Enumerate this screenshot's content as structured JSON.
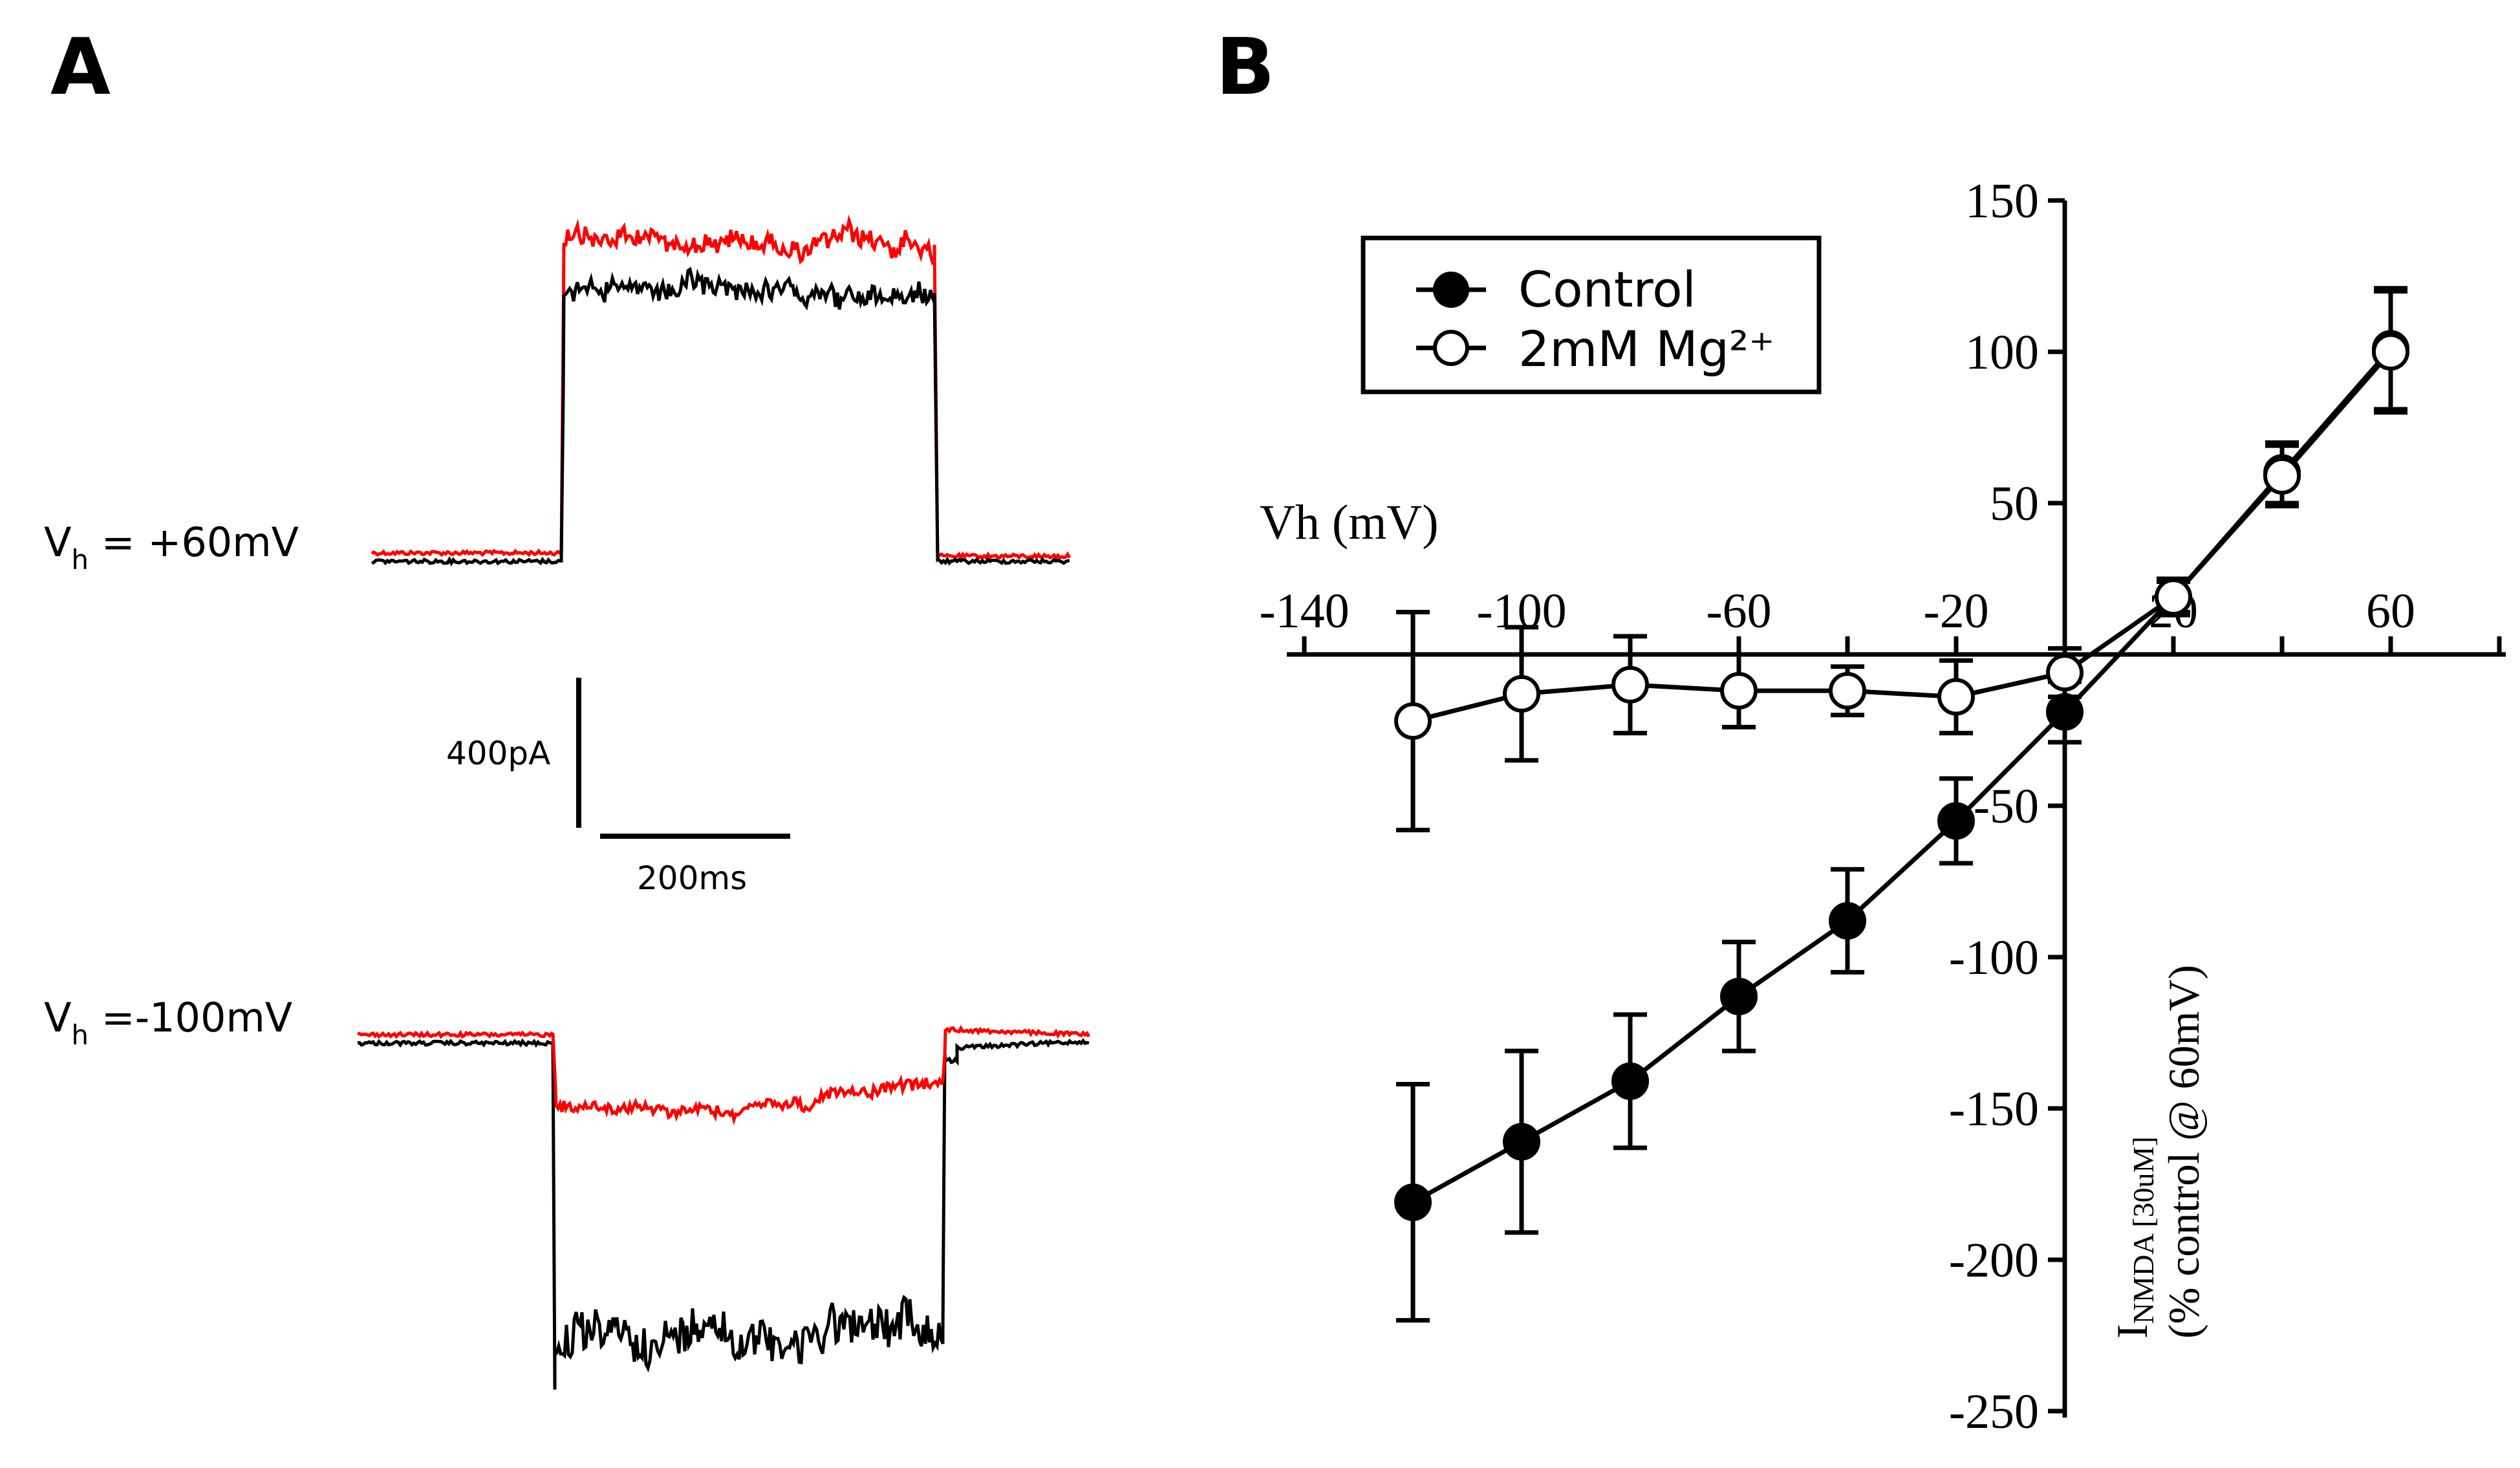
{
  "panels": {
    "a_label": "A",
    "b_label": "B"
  },
  "traces": {
    "top_label_main": "V",
    "top_label_sub": "h",
    "top_label_value": " = +60mV",
    "bottom_label_main": "V",
    "bottom_label_sub": "h",
    "bottom_label_value": " =-100mV",
    "scale_current": "400pA",
    "scale_time": "200ms",
    "colors": {
      "control": "#000000",
      "mg": "#ff0000"
    }
  },
  "chart_data": {
    "type": "scatter",
    "title": "",
    "xlabel": "Vh (mV)",
    "ylabel_main": "I",
    "ylabel_sub": "NMDA [30uM]",
    "ylabel_line2": "(% control @ 60mV)",
    "xlim": [
      -140,
      80
    ],
    "ylim": [
      -250,
      150
    ],
    "x_ticks": [
      -140,
      -100,
      -60,
      -20,
      20,
      60
    ],
    "x_tick_labels": [
      "-140",
      "-100",
      "-60",
      "-20",
      "20",
      "60"
    ],
    "y_ticks": [
      150,
      100,
      50,
      -50,
      -100,
      -150,
      -200,
      -250
    ],
    "y_tick_labels": [
      "150",
      "100",
      "50",
      "-50",
      "-100",
      "-150",
      "-200",
      "-250"
    ],
    "legend_position": "top-left",
    "series": [
      {
        "name": "Control",
        "marker": "filled-circle",
        "x": [
          -120,
          -100,
          -80,
          -60,
          -40,
          -20,
          0,
          20,
          40,
          60
        ],
        "y": [
          -181,
          -161,
          -141,
          -113,
          -88,
          -55,
          -19,
          19,
          60,
          101
        ],
        "err": [
          39,
          30,
          22,
          18,
          17,
          14,
          10,
          6,
          10,
          20
        ]
      },
      {
        "name": "2mM Mg²⁺",
        "marker": "open-circle",
        "x": [
          -120,
          -100,
          -80,
          -60,
          -40,
          -20,
          0,
          20,
          40,
          60
        ],
        "y": [
          -22,
          -13,
          -10,
          -12,
          -12,
          -14,
          -6,
          19,
          59,
          100
        ],
        "err": [
          36,
          22,
          16,
          12,
          8,
          12,
          8,
          5,
          10,
          20
        ]
      }
    ]
  }
}
